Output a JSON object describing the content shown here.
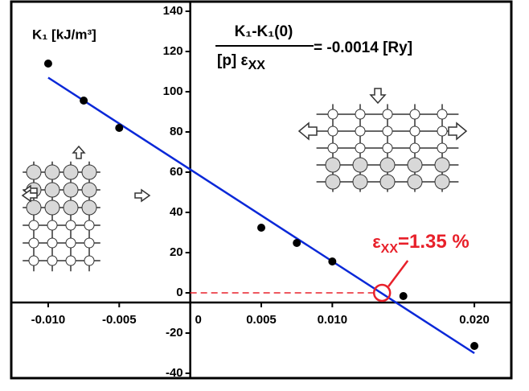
{
  "chart_data": {
    "type": "scatter",
    "y_label": "K₁  [kJ/m³]",
    "formula": {
      "numerator": "K₁-K₁(0)",
      "denominator": "[p] ε",
      "denominator_subscript": "XX",
      "result": "= -0.0014  [Ry]"
    },
    "annotation": {
      "text": "ε",
      "subscript": "XX",
      "value_text": "=1.35 %",
      "x": 0.0135,
      "y": 0,
      "color": "#e8202a"
    },
    "x": [
      -0.01,
      -0.0075,
      -0.005,
      0.005,
      0.0075,
      0.01,
      0.015,
      0.02
    ],
    "series": [
      {
        "color": "#000000",
        "values": [
          114,
          95.6,
          82,
          32.4,
          24.8,
          15.6,
          -1.6,
          -26.4
        ]
      }
    ],
    "fit_line": {
      "color": "#0a28d8",
      "x": [
        -0.01,
        0.02
      ],
      "y": [
        107,
        -30
      ]
    },
    "xlim": [
      -0.0126,
      0.0226
    ],
    "ylim": [
      -42.4,
      144.8
    ],
    "xticks": [
      {
        "value": -0.01,
        "label": "-0.010"
      },
      -0.005,
      0,
      0.005,
      {
        "value": 0.01,
        "label": "0.010"
      },
      {
        "value": 0.02,
        "label": "0.020"
      }
    ],
    "yticks": [
      -40,
      -20,
      0,
      20,
      40,
      60,
      80,
      100,
      120,
      140
    ]
  }
}
